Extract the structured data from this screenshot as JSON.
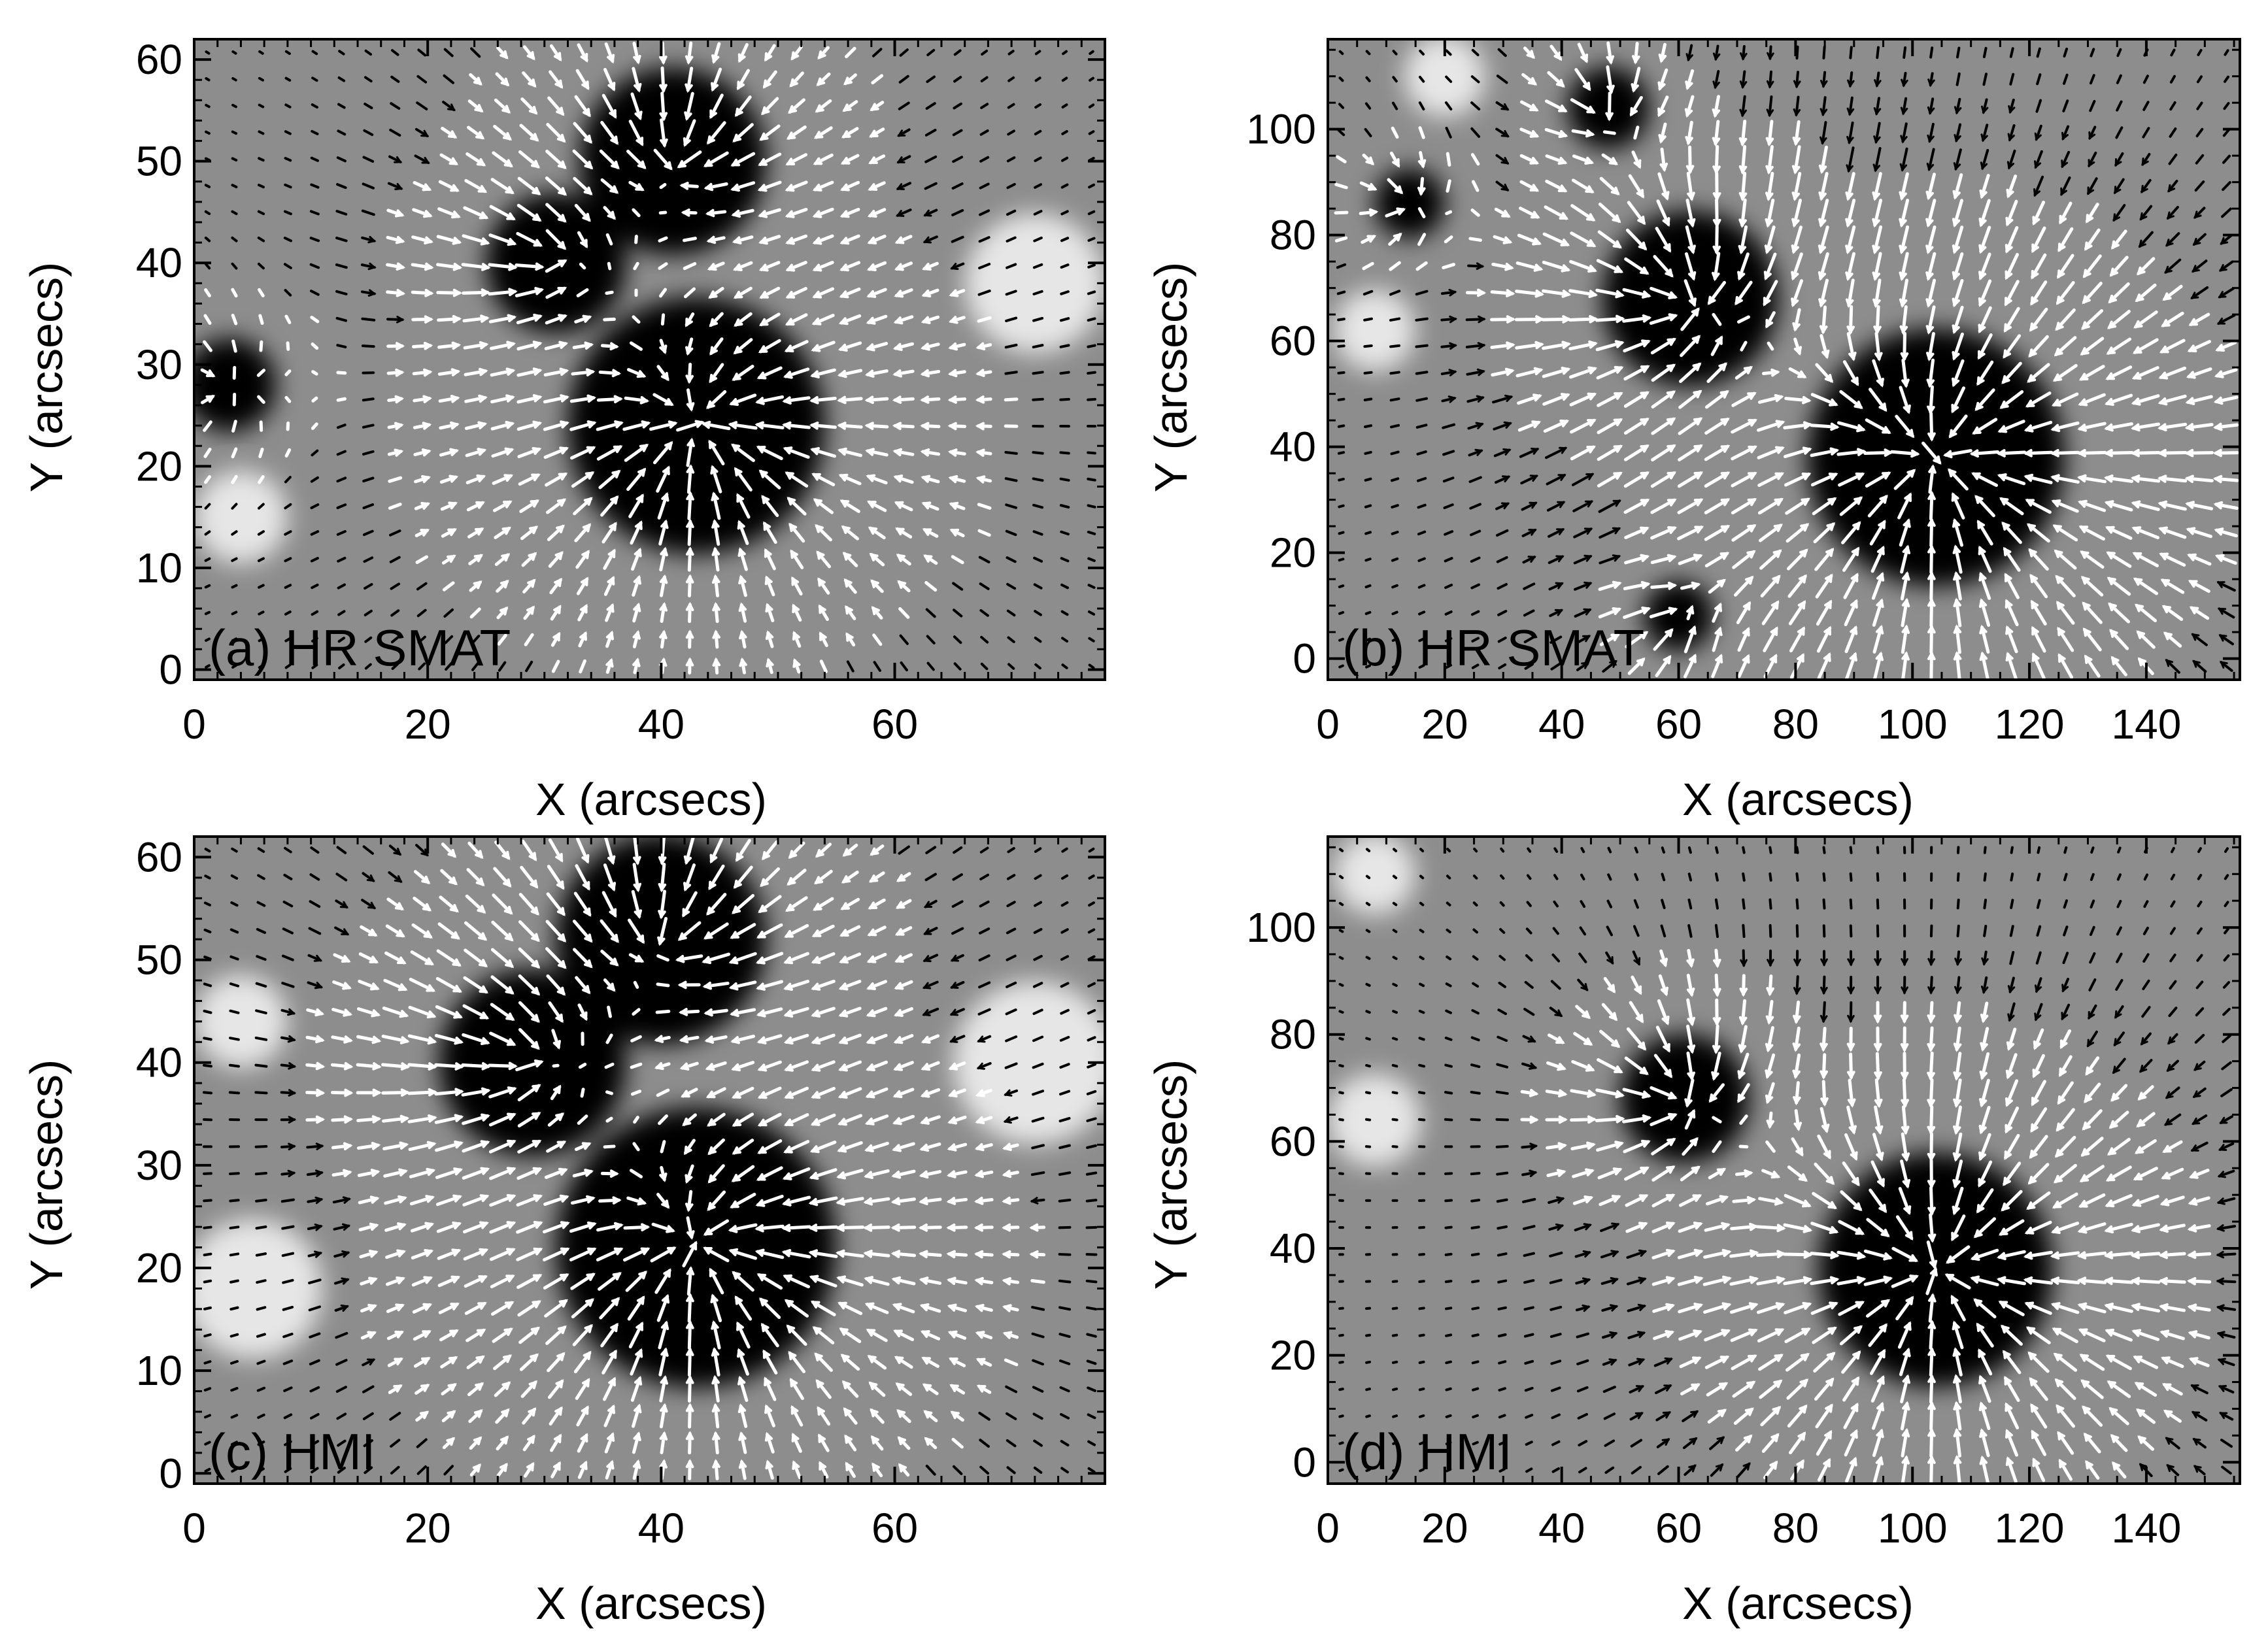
{
  "chart_data": [
    {
      "type": "vector-field-map",
      "panel": "a",
      "label": "(a) HR SMAT",
      "xlabel": "X (arcsecs)",
      "ylabel": "Y (arcsecs)",
      "xlim": [
        0,
        78
      ],
      "ylim": [
        -1,
        62
      ],
      "xticks": [
        0,
        20,
        40,
        60
      ],
      "yticks": [
        0,
        10,
        20,
        30,
        40,
        50,
        60
      ],
      "background": "grayscale magnetogram (dark = negative, bright = positive)",
      "dark_patches": [
        {
          "x": 43,
          "y": 24,
          "r": 11
        },
        {
          "x": 41,
          "y": 50,
          "r": 8
        },
        {
          "x": 31,
          "y": 40,
          "r": 6
        },
        {
          "x": 3,
          "y": 28,
          "r": 4
        }
      ],
      "bright_patches": [
        {
          "x": 72,
          "y": 38,
          "r": 6
        },
        {
          "x": 4,
          "y": 15,
          "r": 4
        }
      ],
      "vector_colors": {
        "strong": "#ffffff",
        "weak": "#000000"
      }
    },
    {
      "type": "vector-field-map",
      "panel": "b",
      "label": "(b) HR SMAT",
      "xlabel": "X (arcsecs)",
      "ylabel": "Y (arcsecs)",
      "xlim": [
        0,
        156
      ],
      "ylim": [
        -4,
        117
      ],
      "xticks": [
        0,
        20,
        40,
        60,
        80,
        100,
        120,
        140
      ],
      "yticks": [
        0,
        20,
        40,
        60,
        80,
        100
      ],
      "background": "grayscale magnetogram (dark = negative, bright = positive)",
      "dark_patches": [
        {
          "x": 104,
          "y": 38,
          "r": 22
        },
        {
          "x": 62,
          "y": 68,
          "r": 15
        },
        {
          "x": 48,
          "y": 104,
          "r": 7
        },
        {
          "x": 14,
          "y": 86,
          "r": 6
        },
        {
          "x": 60,
          "y": 8,
          "r": 6
        }
      ],
      "bright_patches": [
        {
          "x": 8,
          "y": 62,
          "r": 7
        },
        {
          "x": 20,
          "y": 110,
          "r": 7
        }
      ],
      "vector_colors": {
        "strong": "#ffffff",
        "weak": "#000000"
      }
    },
    {
      "type": "vector-field-map",
      "panel": "c",
      "label": "(c) HMI",
      "xlabel": "X (arcsecs)",
      "ylabel": "Y (arcsecs)",
      "xlim": [
        0,
        78
      ],
      "ylim": [
        -1,
        62
      ],
      "xticks": [
        0,
        20,
        40,
        60
      ],
      "yticks": [
        0,
        10,
        20,
        30,
        40,
        50,
        60
      ],
      "background": "grayscale magnetogram (dark = negative, bright = positive)",
      "dark_patches": [
        {
          "x": 43,
          "y": 22,
          "r": 12
        },
        {
          "x": 40,
          "y": 52,
          "r": 9
        },
        {
          "x": 29,
          "y": 40,
          "r": 8
        }
      ],
      "bright_patches": [
        {
          "x": 72,
          "y": 40,
          "r": 7
        },
        {
          "x": 5,
          "y": 18,
          "r": 6
        },
        {
          "x": 4,
          "y": 44,
          "r": 4
        }
      ],
      "vector_colors": {
        "strong": "#ffffff",
        "weak": "#000000"
      }
    },
    {
      "type": "vector-field-map",
      "panel": "d",
      "label": "(d) HMI",
      "xlabel": "X (arcsecs)",
      "ylabel": "Y (arcsecs)",
      "xlim": [
        0,
        156
      ],
      "ylim": [
        -4,
        117
      ],
      "xticks": [
        0,
        20,
        40,
        60,
        80,
        100,
        120,
        140
      ],
      "yticks": [
        0,
        20,
        40,
        60,
        80,
        100
      ],
      "background": "grayscale magnetogram (dark = negative, bright = positive)",
      "dark_patches": [
        {
          "x": 104,
          "y": 36,
          "r": 20
        },
        {
          "x": 61,
          "y": 68,
          "r": 11
        }
      ],
      "bright_patches": [
        {
          "x": 8,
          "y": 64,
          "r": 8
        },
        {
          "x": 8,
          "y": 110,
          "r": 7
        }
      ],
      "vector_colors": {
        "strong": "#ffffff",
        "weak": "#000000"
      }
    }
  ]
}
